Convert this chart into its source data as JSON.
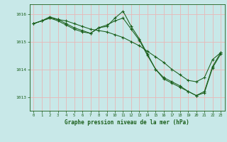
{
  "xlabel": "Graphe pression niveau de la mer (hPa)",
  "background_color": "#c8e8e8",
  "plot_bg_color": "#c8e8e8",
  "grid_color_v": "#e8b8b8",
  "grid_color_h": "#e8b8b8",
  "line_color": "#1a5e1a",
  "ylim": [
    1012.5,
    1016.35
  ],
  "yticks": [
    1013,
    1014,
    1015,
    1016
  ],
  "xlim": [
    -0.5,
    23.5
  ],
  "xticks": [
    0,
    1,
    2,
    3,
    4,
    5,
    6,
    7,
    8,
    9,
    10,
    11,
    12,
    13,
    14,
    15,
    16,
    17,
    18,
    19,
    20,
    21,
    22,
    23
  ],
  "series": [
    [
      1015.65,
      1015.75,
      1015.85,
      1015.8,
      1015.75,
      1015.65,
      1015.55,
      1015.45,
      1015.4,
      1015.35,
      1015.25,
      1015.15,
      1015.0,
      1014.85,
      1014.65,
      1014.45,
      1014.25,
      1014.0,
      1013.8,
      1013.6,
      1013.55,
      1013.7,
      1014.35,
      1014.6
    ],
    [
      1015.65,
      1015.75,
      1015.9,
      1015.8,
      1015.65,
      1015.5,
      1015.4,
      1015.3,
      1015.5,
      1015.55,
      1015.85,
      1016.1,
      1015.55,
      1015.1,
      1014.55,
      1014.0,
      1013.7,
      1013.55,
      1013.4,
      1013.2,
      1013.05,
      1013.15,
      1014.05,
      1014.55
    ],
    [
      1015.65,
      1015.75,
      1015.85,
      1015.75,
      1015.6,
      1015.45,
      1015.35,
      1015.3,
      1015.5,
      1015.6,
      1015.75,
      1015.85,
      1015.45,
      1015.05,
      1014.5,
      1014.0,
      1013.65,
      1013.5,
      1013.35,
      1013.2,
      1013.05,
      1013.2,
      1014.1,
      1014.6
    ]
  ]
}
